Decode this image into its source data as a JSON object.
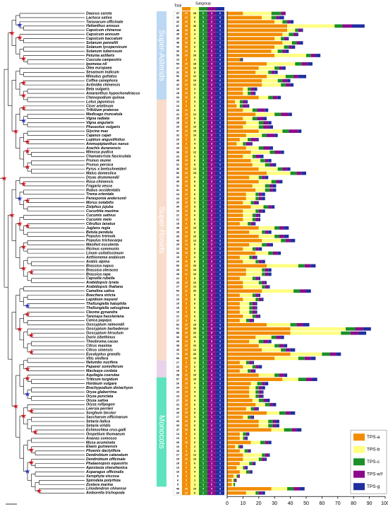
{
  "chart_data": {
    "type": "bar",
    "orientation": "horizontal",
    "stacked": true,
    "categories": [
      "Daucus carota",
      "Lactuca sativa",
      "Taraxacum officinale",
      "Helianthus annuus",
      "Capsicum chinense",
      "Capsicum annuum",
      "Capsicum baccatum",
      "Solanum pennellii",
      "Solanum lycopersicum",
      "Solanum tuberosum",
      "Petunia axillaris",
      "Cuscuta campestris",
      "Ipomoea nil",
      "Olea europaea",
      "Sesamum indicum",
      "Mimulus guttatus",
      "Coffea canephora",
      "Actinidia chinensis",
      "Beta vulgaris",
      "Amaranthus hypochondriacus",
      "Chenopodium quinoa",
      "Lotus japonicus",
      "Cicer arietinum",
      "Trifolium pratense",
      "Medicago truncatula",
      "Vigna radiata",
      "Vigna angularis",
      "Phaseolus vulgaris",
      "Glycine max",
      "Cajanus cajan",
      "Lupinus angustifolius",
      "Ammopiptanthus nanus",
      "Arachis duranensis",
      "Mimosa pudica",
      "Chamaecrista fasciculata",
      "Prunus mume",
      "Prunus persica",
      "Pyrus x bretschneideri",
      "Malus domestica",
      "Dryas drummondii",
      "Rosa chinensis",
      "Fragaria vesca",
      "Rubus occidentalis",
      "Trema orientale",
      "Parasponia andersonii",
      "Morus notabilis",
      "Ziziphus jujuba",
      "Cucurbita maxima",
      "Cucumis sativus",
      "Cucumis melo",
      "Citrullus lanatus",
      "Juglans regia",
      "Betula pendula",
      "Populus tremula",
      "Populus trichocarpa",
      "Manihot esculenta",
      "Ricinus communis",
      "Linum usitatissimum",
      "Aethionema arabicum",
      "Arabis alpina",
      "Brassica napus",
      "Brassica oleracea",
      "Brassica rapa",
      "Capsella rubella",
      "Arabidopsis lyrata",
      "Arabidopsis thaliana",
      "Camelina sativa",
      "Boechera stricta",
      "Lepidium meyenii",
      "Thellungiella halophila",
      "Thellungiella salsuginea",
      "Cleome gynandra",
      "Tarenaya hassleriana",
      "Carica papaya",
      "Gossypium raimondii",
      "Gossypium barbadense",
      "Gossypium hirsutum",
      "Durio zibethinus",
      "Theobroma cacao",
      "Citrus maxima",
      "Citrus sinensis",
      "Eucalyptus grandis",
      "Vitis vinifera",
      "Nelumbo nucifera",
      "Papaver somniferum",
      "Macleaya cordata",
      "Aquilegia coerulea",
      "Triticum turgidum",
      "Hordeum vulgare",
      "Brachypodium distachyon",
      "Oryza glaberrima",
      "Oryza punctata",
      "Oryza sativa",
      "Oryza rufipogon",
      "Leersia perrieri",
      "Sorghum bicolor",
      "Saccharum officinarum",
      "Setaria italica",
      "Setaria viridis",
      "Echinochloa crus-galli",
      "Oropetium thomaeum",
      "Ananas comosus",
      "Musa acuminata",
      "Elaeis guineensis",
      "Phoenix dactylifera",
      "Dendrobium catenatum",
      "Dendrobium officinale",
      "Phalaenopsis equestris",
      "Apostasia shenzhenica",
      "Asparagus officinalis",
      "Xerophyta viscosa",
      "Spirodela polyrhiza",
      "Zostera marina",
      "Liriodendron chinense",
      "Amborella trichopoda"
    ],
    "series": [
      {
        "name": "TPS-a",
        "color": "#f28c00",
        "values": [
          10,
          22,
          30,
          38,
          38,
          35,
          30,
          35,
          30,
          28,
          30,
          8,
          25,
          20,
          18,
          25,
          22,
          22,
          10,
          10,
          20,
          5,
          6,
          10,
          18,
          10,
          12,
          10,
          20,
          12,
          8,
          6,
          12,
          15,
          10,
          15,
          16,
          20,
          25,
          14,
          20,
          16,
          18,
          12,
          12,
          10,
          15,
          10,
          10,
          10,
          8,
          20,
          14,
          20,
          22,
          14,
          10,
          18,
          8,
          10,
          25,
          12,
          12,
          8,
          10,
          10,
          22,
          8,
          10,
          8,
          8,
          8,
          10,
          8,
          25,
          40,
          40,
          18,
          14,
          20,
          22,
          40,
          30,
          8,
          10,
          8,
          20,
          35,
          15,
          14,
          14,
          14,
          16,
          18,
          12,
          25,
          10,
          20,
          20,
          28,
          8,
          8,
          15,
          5,
          8,
          10,
          10,
          8,
          6,
          8,
          4,
          3,
          3,
          28,
          12
        ]
      },
      {
        "name": "TPS-b",
        "color": "#ffff80",
        "values": [
          18,
          6,
          5,
          30,
          5,
          4,
          4,
          6,
          6,
          4,
          20,
          0,
          18,
          10,
          8,
          12,
          10,
          12,
          3,
          3,
          6,
          3,
          2,
          6,
          12,
          6,
          8,
          10,
          15,
          10,
          5,
          4,
          8,
          12,
          6,
          6,
          8,
          12,
          15,
          6,
          8,
          8,
          6,
          6,
          6,
          5,
          8,
          8,
          6,
          6,
          5,
          10,
          8,
          10,
          12,
          8,
          6,
          8,
          6,
          8,
          20,
          10,
          10,
          8,
          10,
          12,
          20,
          8,
          8,
          6,
          6,
          6,
          6,
          4,
          15,
          35,
          32,
          10,
          6,
          10,
          12,
          20,
          15,
          4,
          6,
          5,
          10,
          10,
          4,
          4,
          4,
          4,
          4,
          6,
          3,
          8,
          3,
          6,
          6,
          8,
          2,
          2,
          6,
          2,
          3,
          12,
          10,
          6,
          4,
          4,
          2,
          1,
          1,
          10,
          6
        ]
      },
      {
        "name": "TPS-c",
        "color": "#1a8f2a",
        "values": [
          6,
          3,
          3,
          5,
          2,
          3,
          2,
          3,
          3,
          3,
          3,
          1,
          4,
          3,
          2,
          5,
          3,
          3,
          2,
          2,
          3,
          2,
          2,
          3,
          4,
          3,
          3,
          3,
          4,
          3,
          2,
          2,
          3,
          3,
          2,
          3,
          3,
          3,
          4,
          2,
          3,
          3,
          3,
          2,
          2,
          2,
          3,
          2,
          2,
          2,
          2,
          3,
          2,
          3,
          3,
          3,
          2,
          3,
          2,
          2,
          4,
          2,
          2,
          2,
          2,
          2,
          4,
          2,
          2,
          2,
          2,
          2,
          2,
          2,
          4,
          6,
          6,
          3,
          3,
          3,
          3,
          5,
          4,
          2,
          2,
          2,
          3,
          5,
          3,
          2,
          2,
          2,
          3,
          3,
          2,
          4,
          2,
          3,
          3,
          5,
          2,
          1,
          3,
          1,
          2,
          2,
          2,
          2,
          1,
          2,
          1,
          1,
          1,
          4,
          2
        ]
      },
      {
        "name": "TPS-e/f",
        "color": "#8b0a8b",
        "values": [
          3,
          2,
          2,
          6,
          2,
          2,
          2,
          2,
          2,
          2,
          3,
          1,
          4,
          2,
          2,
          3,
          3,
          3,
          2,
          2,
          3,
          2,
          3,
          5,
          5,
          4,
          3,
          4,
          6,
          5,
          4,
          3,
          4,
          4,
          3,
          2,
          2,
          3,
          3,
          2,
          2,
          2,
          2,
          2,
          2,
          2,
          2,
          2,
          2,
          2,
          2,
          3,
          2,
          3,
          3,
          2,
          2,
          3,
          2,
          2,
          4,
          2,
          2,
          2,
          2,
          2,
          4,
          2,
          2,
          2,
          2,
          2,
          2,
          2,
          4,
          5,
          5,
          3,
          3,
          3,
          3,
          4,
          4,
          2,
          2,
          2,
          3,
          4,
          2,
          2,
          2,
          2,
          2,
          2,
          2,
          3,
          1,
          2,
          2,
          3,
          1,
          1,
          2,
          1,
          1,
          2,
          2,
          1,
          1,
          1,
          1,
          1,
          0,
          4,
          2
        ]
      },
      {
        "name": "TPS-g",
        "color": "#1f2f9f",
        "values": [
          0,
          3,
          2,
          8,
          1,
          1,
          1,
          2,
          2,
          2,
          3,
          0,
          3,
          2,
          2,
          5,
          2,
          2,
          2,
          1,
          2,
          1,
          1,
          2,
          2,
          2,
          2,
          2,
          2,
          2,
          1,
          1,
          2,
          2,
          2,
          2,
          2,
          2,
          3,
          2,
          2,
          2,
          2,
          2,
          2,
          1,
          2,
          2,
          1,
          1,
          1,
          3,
          2,
          3,
          3,
          2,
          2,
          2,
          1,
          2,
          3,
          2,
          2,
          1,
          1,
          1,
          3,
          1,
          1,
          1,
          1,
          1,
          1,
          1,
          4,
          5,
          5,
          2,
          2,
          2,
          3,
          3,
          3,
          1,
          2,
          1,
          2,
          3,
          2,
          2,
          1,
          1,
          2,
          2,
          1,
          3,
          1,
          2,
          2,
          3,
          1,
          1,
          2,
          1,
          1,
          1,
          1,
          1,
          1,
          1,
          0,
          0,
          0,
          3,
          2
        ]
      }
    ],
    "totals": [
      37,
      36,
      42,
      87,
      48,
      45,
      39,
      48,
      43,
      39,
      59,
      10,
      54,
      37,
      32,
      50,
      40,
      42,
      19,
      18,
      34,
      13,
      14,
      26,
      41,
      25,
      28,
      29,
      47,
      32,
      20,
      16,
      29,
      36,
      23,
      28,
      31,
      40,
      50,
      26,
      35,
      31,
      31,
      24,
      24,
      20,
      30,
      24,
      21,
      21,
      18,
      39,
      28,
      39,
      43,
      29,
      22,
      34,
      19,
      24,
      56,
      28,
      28,
      21,
      25,
      27,
      53,
      21,
      23,
      19,
      19,
      19,
      21,
      17,
      52,
      91,
      88,
      36,
      28,
      38,
      43,
      72,
      56,
      17,
      22,
      18,
      38,
      57,
      26,
      24,
      23,
      23,
      27,
      31,
      20,
      43,
      17,
      33,
      33,
      47,
      14,
      13,
      28,
      10,
      15,
      27,
      25,
      18,
      13,
      16,
      8,
      6,
      5,
      49,
      24
    ],
    "table_header": {
      "total": "Total",
      "subgroup": "Subgroup"
    },
    "groups": [
      "Super-Asterids",
      "Super-Rosids",
      "Monocots"
    ],
    "xlim": [
      0,
      100
    ],
    "xticks": [
      0,
      10,
      20,
      30,
      40,
      50,
      60,
      70,
      80,
      90,
      100
    ],
    "legend": "lower right"
  }
}
